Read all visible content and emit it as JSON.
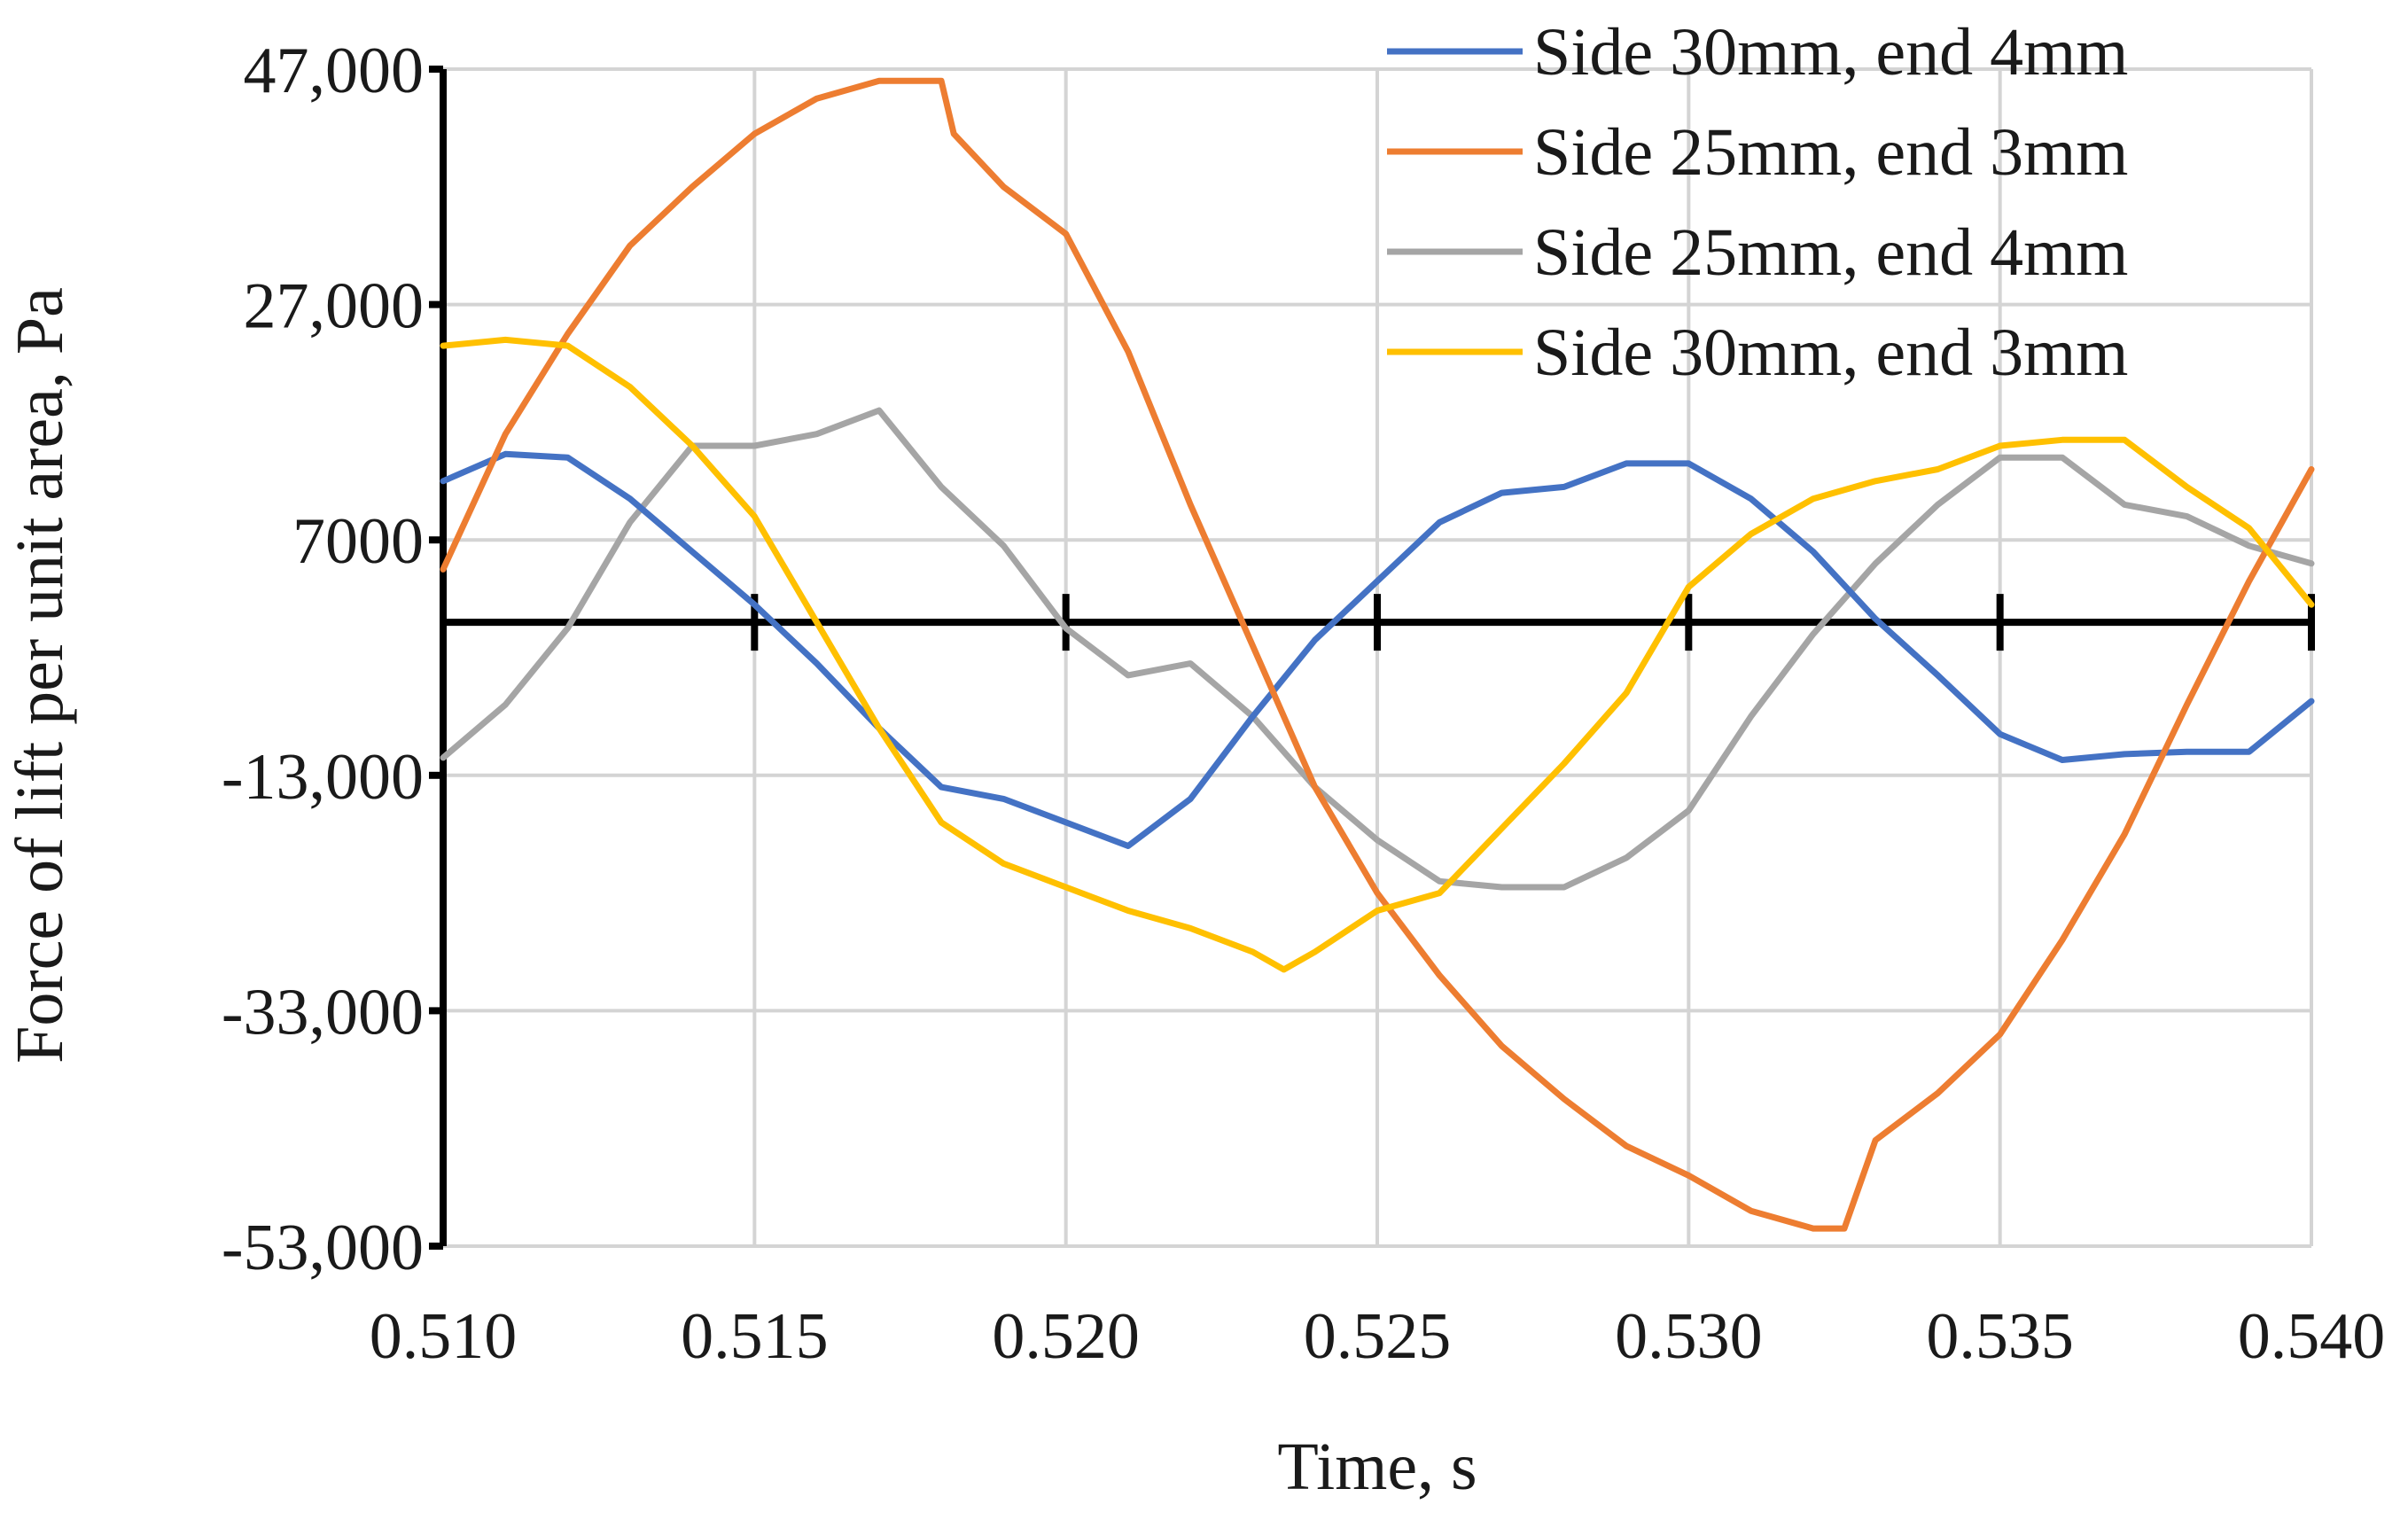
{
  "chart_data": {
    "type": "line",
    "xlabel": "Time, s",
    "ylabel": "Force of lift per unit area, Pa",
    "xlim": [
      0.51,
      0.54
    ],
    "ylim": [
      -53000,
      47000
    ],
    "x_ticks": [
      0.51,
      0.515,
      0.52,
      0.525,
      0.53,
      0.535,
      0.54
    ],
    "x_tick_labels": [
      "0.510",
      "0.515",
      "0.520",
      "0.525",
      "0.530",
      "0.535",
      "0.540"
    ],
    "y_ticks": [
      47000,
      27000,
      7000,
      -13000,
      -33000,
      -53000
    ],
    "y_tick_labels": [
      "47,000",
      "27,000",
      "7000",
      "-13,000",
      "-33,000",
      "-53,000"
    ],
    "grid": true,
    "legend_position": "top-right",
    "series": [
      {
        "name": "Side 30mm, end 4mm",
        "color": "#4472C4",
        "x": [
          0.51,
          0.511,
          0.512,
          0.513,
          0.514,
          0.515,
          0.516,
          0.517,
          0.518,
          0.519,
          0.52,
          0.521,
          0.522,
          0.523,
          0.524,
          0.525,
          0.526,
          0.527,
          0.528,
          0.529,
          0.53,
          0.531,
          0.532,
          0.533,
          0.534,
          0.535,
          0.536,
          0.537,
          0.538,
          0.539,
          0.54
        ],
        "y": [
          12000,
          14300,
          14000,
          10500,
          6000,
          1500,
          -3500,
          -9000,
          -14000,
          -15000,
          -17000,
          -19000,
          -15000,
          -8000,
          -1500,
          3500,
          8500,
          11000,
          11500,
          13500,
          13500,
          10500,
          6000,
          300,
          -4500,
          -9500,
          -11700,
          -11200,
          -11000,
          -11000,
          -6700
        ]
      },
      {
        "name": "Side 25mm, end 3mm",
        "color": "#ED7D31",
        "x": [
          0.51,
          0.511,
          0.512,
          0.513,
          0.514,
          0.515,
          0.516,
          0.517,
          0.518,
          0.5182,
          0.519,
          0.52,
          0.521,
          0.522,
          0.523,
          0.524,
          0.525,
          0.526,
          0.527,
          0.528,
          0.529,
          0.53,
          0.531,
          0.532,
          0.5325,
          0.533,
          0.534,
          0.535,
          0.536,
          0.537,
          0.538,
          0.539,
          0.54
        ],
        "y": [
          4500,
          16000,
          24500,
          32000,
          37000,
          41500,
          44500,
          46000,
          46000,
          41500,
          37000,
          33000,
          23000,
          10000,
          -2000,
          -14000,
          -23000,
          -30000,
          -36000,
          -40500,
          -44500,
          -47000,
          -50000,
          -51500,
          -51500,
          -44000,
          -40000,
          -35000,
          -27000,
          -18000,
          -7000,
          3500,
          13000
        ]
      },
      {
        "name": "Side 25mm, end 4mm",
        "color": "#A5A5A5",
        "x": [
          0.51,
          0.511,
          0.512,
          0.513,
          0.514,
          0.515,
          0.516,
          0.517,
          0.518,
          0.519,
          0.52,
          0.521,
          0.522,
          0.523,
          0.524,
          0.525,
          0.526,
          0.527,
          0.528,
          0.529,
          0.53,
          0.531,
          0.532,
          0.533,
          0.534,
          0.535,
          0.536,
          0.537,
          0.538,
          0.539,
          0.54
        ],
        "y": [
          -11500,
          -7000,
          -500,
          8500,
          15000,
          15000,
          16000,
          18000,
          11500,
          6500,
          -500,
          -4500,
          -3500,
          -8000,
          -14000,
          -18500,
          -22000,
          -22500,
          -22500,
          -20000,
          -16000,
          -8000,
          -1000,
          5000,
          10000,
          14000,
          14000,
          10000,
          9000,
          6500,
          5000
        ]
      },
      {
        "name": "Side 30mm, end 3mm",
        "color": "#FFC000",
        "x": [
          0.51,
          0.511,
          0.512,
          0.513,
          0.514,
          0.515,
          0.516,
          0.517,
          0.518,
          0.519,
          0.52,
          0.521,
          0.522,
          0.523,
          0.5235,
          0.524,
          0.525,
          0.526,
          0.527,
          0.528,
          0.529,
          0.53,
          0.531,
          0.532,
          0.533,
          0.534,
          0.535,
          0.536,
          0.537,
          0.538,
          0.539,
          0.54
        ],
        "y": [
          23500,
          24000,
          23500,
          20000,
          15000,
          9000,
          0,
          -9000,
          -17000,
          -20500,
          -22500,
          -24500,
          -26000,
          -28000,
          -29500,
          -28000,
          -24500,
          -23000,
          -17500,
          -12000,
          -6000,
          3000,
          7500,
          10500,
          12000,
          13000,
          15000,
          15500,
          15500,
          11500,
          8000,
          1500
        ]
      }
    ]
  }
}
